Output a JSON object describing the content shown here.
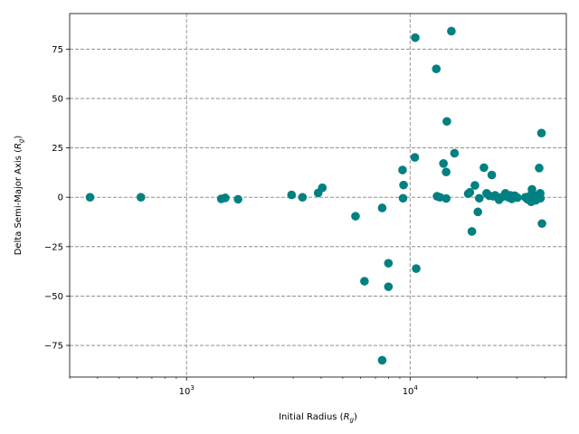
{
  "chart_data": {
    "type": "scatter",
    "title": "",
    "xlabel_main": "Initial Radius (",
    "xlabel_sym": "R",
    "xlabel_sub": "g",
    "xlabel_end": ")",
    "ylabel_main": "Delta Semi-Major Axis (",
    "ylabel_sym": "R",
    "ylabel_sub": "g",
    "ylabel_end": ")",
    "xscale": "log",
    "xlim": [
      300,
      50000
    ],
    "ylim": [
      -91,
      93
    ],
    "grid": true,
    "marker_color": "#008080",
    "x_major_ticks": [
      {
        "value": 1000,
        "base": "10",
        "exp": "3"
      },
      {
        "value": 10000,
        "base": "10",
        "exp": "4"
      }
    ],
    "y_ticks": [
      {
        "value": 75,
        "label": "75"
      },
      {
        "value": 50,
        "label": "50"
      },
      {
        "value": 25,
        "label": "25"
      },
      {
        "value": 0,
        "label": "0"
      },
      {
        "value": -25,
        "label": "−25"
      },
      {
        "value": -50,
        "label": "−50"
      },
      {
        "value": -75,
        "label": "−75"
      }
    ],
    "points": [
      {
        "x": 370,
        "y": 0.0
      },
      {
        "x": 625,
        "y": 0.0
      },
      {
        "x": 1430,
        "y": -0.8
      },
      {
        "x": 1490,
        "y": -0.3
      },
      {
        "x": 1700,
        "y": -1.0
      },
      {
        "x": 2950,
        "y": 1.2
      },
      {
        "x": 3300,
        "y": 0.0
      },
      {
        "x": 3880,
        "y": 2.2
      },
      {
        "x": 4050,
        "y": 4.8
      },
      {
        "x": 5700,
        "y": -9.6
      },
      {
        "x": 6250,
        "y": -42.5
      },
      {
        "x": 7500,
        "y": -5.4
      },
      {
        "x": 7500,
        "y": -82.5
      },
      {
        "x": 8000,
        "y": -33.4
      },
      {
        "x": 8000,
        "y": -45.3
      },
      {
        "x": 9250,
        "y": 13.8
      },
      {
        "x": 9350,
        "y": 6.2
      },
      {
        "x": 9300,
        "y": -0.5
      },
      {
        "x": 10500,
        "y": 20.2
      },
      {
        "x": 10550,
        "y": 80.8
      },
      {
        "x": 10650,
        "y": -36.1
      },
      {
        "x": 13100,
        "y": 65.0
      },
      {
        "x": 13200,
        "y": 0.5
      },
      {
        "x": 13600,
        "y": 0.0
      },
      {
        "x": 14100,
        "y": 17.1
      },
      {
        "x": 14500,
        "y": 12.8
      },
      {
        "x": 14600,
        "y": 38.4
      },
      {
        "x": 14500,
        "y": -0.6
      },
      {
        "x": 15300,
        "y": 84.1
      },
      {
        "x": 15800,
        "y": 22.3
      },
      {
        "x": 18200,
        "y": 1.8
      },
      {
        "x": 18500,
        "y": 2.5
      },
      {
        "x": 18900,
        "y": -17.3
      },
      {
        "x": 19500,
        "y": 6.0
      },
      {
        "x": 20100,
        "y": -7.4
      },
      {
        "x": 20400,
        "y": -0.5
      },
      {
        "x": 21400,
        "y": 15.0
      },
      {
        "x": 22000,
        "y": 2.0
      },
      {
        "x": 22600,
        "y": 0.8
      },
      {
        "x": 23200,
        "y": 11.3
      },
      {
        "x": 23600,
        "y": 0.5
      },
      {
        "x": 24000,
        "y": 1.0
      },
      {
        "x": 25000,
        "y": -1.2
      },
      {
        "x": 25600,
        "y": 0.0
      },
      {
        "x": 26700,
        "y": 2.0
      },
      {
        "x": 27500,
        "y": 0.0
      },
      {
        "x": 28100,
        "y": 1.0
      },
      {
        "x": 28500,
        "y": -0.8
      },
      {
        "x": 29400,
        "y": 0.8
      },
      {
        "x": 30200,
        "y": -0.2
      },
      {
        "x": 32800,
        "y": 0.0
      },
      {
        "x": 33500,
        "y": -1.0
      },
      {
        "x": 34200,
        "y": 0.5
      },
      {
        "x": 34800,
        "y": -2.3
      },
      {
        "x": 35100,
        "y": 4.0
      },
      {
        "x": 35700,
        "y": 1.0
      },
      {
        "x": 36500,
        "y": -1.5
      },
      {
        "x": 37200,
        "y": 0.5
      },
      {
        "x": 37800,
        "y": 14.8
      },
      {
        "x": 38200,
        "y": 2.0
      },
      {
        "x": 38700,
        "y": 32.5
      },
      {
        "x": 38900,
        "y": -13.3
      },
      {
        "x": 38300,
        "y": -0.5
      }
    ]
  }
}
